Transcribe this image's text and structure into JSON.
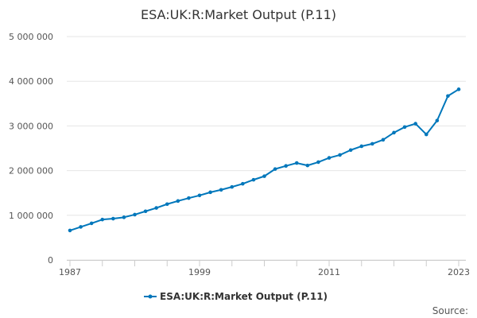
{
  "chart_data": {
    "type": "line",
    "title": "ESA:UK:R:Market Output (P.11)",
    "xlabel": "",
    "ylabel": "",
    "x": [
      1987,
      1988,
      1989,
      1990,
      1991,
      1992,
      1993,
      1994,
      1995,
      1996,
      1997,
      1998,
      1999,
      2000,
      2001,
      2002,
      2003,
      2004,
      2005,
      2006,
      2007,
      2008,
      2009,
      2010,
      2011,
      2012,
      2013,
      2014,
      2015,
      2016,
      2017,
      2018,
      2019,
      2020,
      2021,
      2022,
      2023
    ],
    "series": [
      {
        "name": "ESA:UK:R:Market Output (P.11)",
        "color": "#0077bb",
        "values": [
          660000,
          740000,
          820000,
          905000,
          925000,
          955000,
          1015000,
          1090000,
          1165000,
          1250000,
          1320000,
          1385000,
          1445000,
          1515000,
          1570000,
          1635000,
          1705000,
          1795000,
          1875000,
          2035000,
          2105000,
          2170000,
          2115000,
          2190000,
          2285000,
          2350000,
          2460000,
          2545000,
          2600000,
          2690000,
          2850000,
          2975000,
          3050000,
          2810000,
          3120000,
          3670000,
          3820000
        ]
      }
    ],
    "xlim": [
      1987,
      2023
    ],
    "ylim": [
      0,
      5000000
    ],
    "y_ticks": [
      0,
      1000000,
      2000000,
      3000000,
      4000000,
      5000000
    ],
    "y_tick_labels": [
      "0",
      "1 000 000",
      "2 000 000",
      "3 000 000",
      "4 000 000",
      "5 000 000"
    ],
    "x_tick_labels": [
      "1987",
      "1999",
      "2011",
      "2023"
    ],
    "grid": true,
    "legend_position": "bottom",
    "source_label": "Source:"
  }
}
